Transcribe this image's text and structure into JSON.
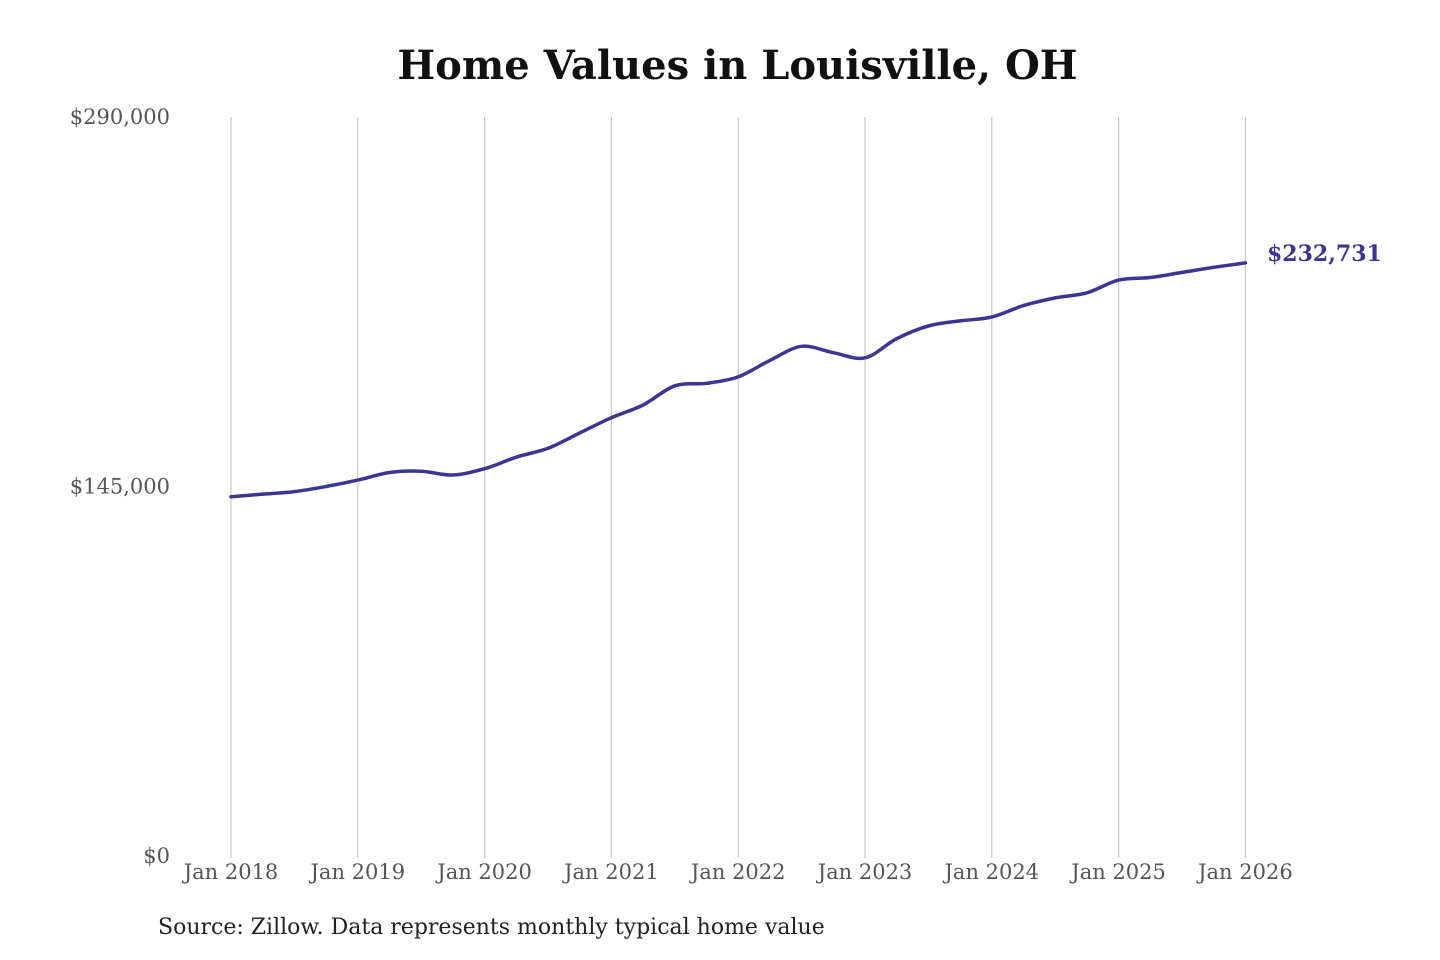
{
  "chart_data": {
    "type": "line",
    "title": "Home Values in Louisville, OH",
    "xlabel": "",
    "ylabel": "",
    "ylim": [
      0,
      290000
    ],
    "y_ticks": [
      "$0",
      "$145,000",
      "$290,000"
    ],
    "y_tick_values": [
      0,
      145000,
      290000
    ],
    "x_ticks": [
      "Jan 2018",
      "Jan 2019",
      "Jan 2020",
      "Jan 2021",
      "Jan 2022",
      "Jan 2023",
      "Jan 2024",
      "Jan 2025",
      "Jan 2026"
    ],
    "grid": "vertical",
    "line_color": "#3d3494",
    "end_label": "$232,731",
    "series": [
      {
        "values": [
          {
            "x": "2018-01",
            "y": 141000
          },
          {
            "x": "2018-04",
            "y": 142000
          },
          {
            "x": "2018-07",
            "y": 143000
          },
          {
            "x": "2018-10",
            "y": 145000
          },
          {
            "x": "2019-01",
            "y": 147500
          },
          {
            "x": "2019-04",
            "y": 150500
          },
          {
            "x": "2019-07",
            "y": 151000
          },
          {
            "x": "2019-10",
            "y": 149500
          },
          {
            "x": "2020-01",
            "y": 152000
          },
          {
            "x": "2020-04",
            "y": 156500
          },
          {
            "x": "2020-07",
            "y": 160000
          },
          {
            "x": "2020-10",
            "y": 166000
          },
          {
            "x": "2021-01",
            "y": 172000
          },
          {
            "x": "2021-04",
            "y": 177000
          },
          {
            "x": "2021-07",
            "y": 184500
          },
          {
            "x": "2021-10",
            "y": 185500
          },
          {
            "x": "2022-01",
            "y": 188000
          },
          {
            "x": "2022-04",
            "y": 194500
          },
          {
            "x": "2022-07",
            "y": 200000
          },
          {
            "x": "2022-10",
            "y": 197500
          },
          {
            "x": "2023-01",
            "y": 195500
          },
          {
            "x": "2023-04",
            "y": 203000
          },
          {
            "x": "2023-07",
            "y": 208000
          },
          {
            "x": "2023-10",
            "y": 210000
          },
          {
            "x": "2024-01",
            "y": 211500
          },
          {
            "x": "2024-04",
            "y": 216000
          },
          {
            "x": "2024-07",
            "y": 219000
          },
          {
            "x": "2024-10",
            "y": 221000
          },
          {
            "x": "2025-01",
            "y": 226000
          },
          {
            "x": "2025-04",
            "y": 227000
          },
          {
            "x": "2025-07",
            "y": 229000
          },
          {
            "x": "2025-10",
            "y": 231000
          },
          {
            "x": "2026-01",
            "y": 232731
          }
        ]
      }
    ]
  },
  "source_note": "Source: Zillow. Data represents monthly typical home value"
}
